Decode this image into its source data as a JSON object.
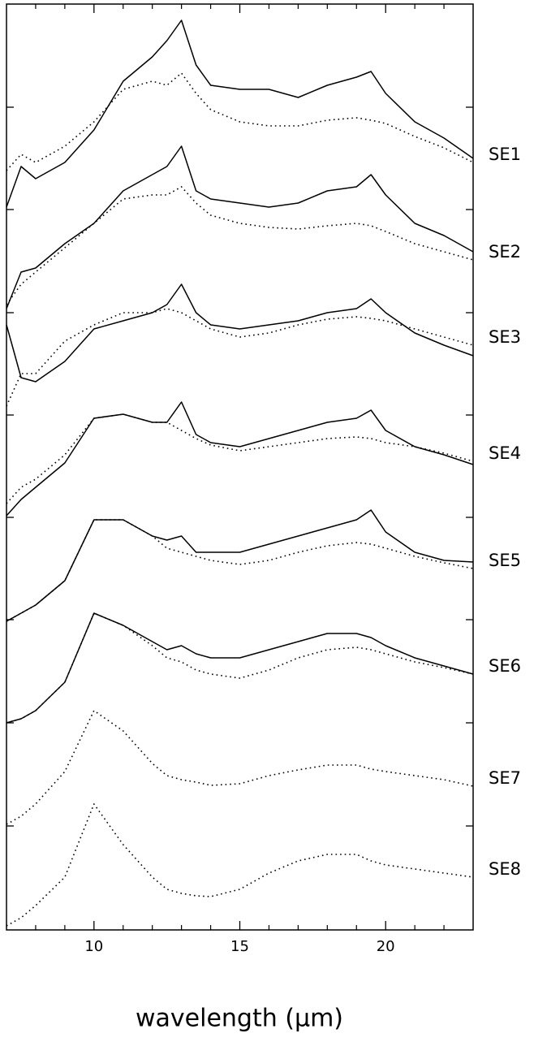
{
  "chart_data": {
    "type": "line",
    "xlabel": "wavelength (μm)",
    "xlim": [
      7,
      23
    ],
    "xticks": [
      10,
      15,
      20
    ],
    "xminorticks": [
      8,
      9,
      11,
      12,
      13,
      14,
      16,
      17,
      18,
      19,
      21,
      22
    ],
    "ylim": [
      0,
      1140
    ],
    "yticks": [
      1013,
      887,
      760,
      634,
      508,
      382,
      255,
      128
    ],
    "color": "#000000",
    "x": [
      7,
      7.5,
      8,
      9,
      10,
      11,
      12,
      12.5,
      13,
      13.5,
      14,
      15,
      16,
      17,
      18,
      19,
      19.5,
      20,
      21,
      22,
      23
    ],
    "spectra": [
      {
        "name": "SE1",
        "observed": [
          890,
          940,
          925,
          945,
          985,
          1045,
          1075,
          1095,
          1120,
          1065,
          1040,
          1035,
          1035,
          1025,
          1040,
          1050,
          1057,
          1030,
          995,
          975,
          950
        ],
        "model": [
          935,
          955,
          945,
          965,
          995,
          1035,
          1045,
          1040,
          1055,
          1030,
          1010,
          995,
          990,
          990,
          997,
          1000,
          997,
          993,
          977,
          963,
          945
        ]
      },
      {
        "name": "SE2",
        "observed": [
          765,
          810,
          815,
          845,
          870,
          910,
          930,
          940,
          965,
          910,
          900,
          895,
          890,
          895,
          910,
          915,
          930,
          905,
          870,
          855,
          835
        ],
        "model": [
          770,
          795,
          810,
          840,
          870,
          900,
          905,
          905,
          915,
          895,
          880,
          870,
          865,
          863,
          867,
          870,
          867,
          860,
          845,
          835,
          825
        ]
      },
      {
        "name": "SE3",
        "observed": [
          745,
          680,
          675,
          700,
          740,
          750,
          760,
          770,
          795,
          760,
          745,
          740,
          745,
          750,
          760,
          765,
          777,
          760,
          735,
          720,
          707
        ],
        "model": [
          645,
          685,
          685,
          725,
          745,
          760,
          760,
          765,
          760,
          750,
          740,
          730,
          735,
          745,
          752,
          755,
          753,
          750,
          740,
          730,
          720
        ]
      },
      {
        "name": "SE4",
        "observed": [
          510,
          530,
          545,
          575,
          630,
          635,
          625,
          625,
          650,
          610,
          600,
          595,
          605,
          615,
          625,
          630,
          640,
          615,
          595,
          585,
          573
        ],
        "model": [
          525,
          545,
          555,
          585,
          630,
          635,
          625,
          625,
          615,
          605,
          597,
          590,
          595,
          600,
          605,
          607,
          605,
          600,
          595,
          587,
          577
        ]
      },
      {
        "name": "SE5",
        "observed": [
          380,
          390,
          400,
          430,
          505,
          505,
          485,
          480,
          485,
          465,
          465,
          465,
          475,
          485,
          495,
          505,
          517,
          490,
          465,
          455,
          453
        ],
        "model": [
          380,
          390,
          400,
          430,
          505,
          505,
          485,
          470,
          465,
          460,
          455,
          450,
          455,
          465,
          473,
          477,
          475,
          470,
          460,
          452,
          445
        ]
      },
      {
        "name": "SE6",
        "observed": [
          255,
          260,
          270,
          305,
          390,
          375,
          355,
          345,
          350,
          340,
          335,
          335,
          345,
          355,
          365,
          365,
          360,
          350,
          335,
          325,
          315
        ],
        "model": [
          255,
          260,
          270,
          305,
          390,
          375,
          350,
          335,
          330,
          320,
          315,
          310,
          320,
          335,
          345,
          348,
          345,
          340,
          330,
          323,
          315
        ]
      },
      {
        "name": "SE7",
        "model": [
          130,
          140,
          155,
          195,
          270,
          245,
          205,
          190,
          185,
          182,
          178,
          180,
          190,
          197,
          203,
          203,
          198,
          195,
          190,
          185,
          177
        ]
      },
      {
        "name": "SE8",
        "model": [
          5,
          15,
          30,
          65,
          155,
          105,
          65,
          50,
          45,
          42,
          41,
          50,
          70,
          85,
          93,
          93,
          85,
          80,
          75,
          70,
          65
        ]
      }
    ]
  }
}
